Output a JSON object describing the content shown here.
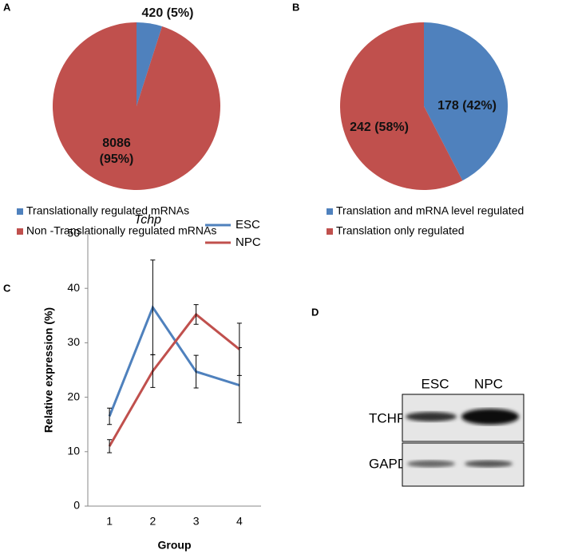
{
  "chart_data": [
    {
      "type": "pie",
      "panel": "A",
      "categories": [
        "Translationally regulated mRNAs",
        "Non -Translationally regulated mRNAs"
      ],
      "values": [
        420,
        8086
      ],
      "value_labels": [
        "420 (5%)",
        "8086 (95%)"
      ],
      "colors": [
        "#4f81bd",
        "#c0504d"
      ]
    },
    {
      "type": "pie",
      "panel": "B",
      "categories": [
        "Translation and mRNA level regulated",
        "Translation only regulated"
      ],
      "values": [
        178,
        242
      ],
      "value_labels": [
        "178 (42%)",
        "242 (58%)"
      ],
      "colors": [
        "#4f81bd",
        "#c0504d"
      ]
    },
    {
      "type": "line",
      "panel": "C",
      "title": "Tchp",
      "x_label": "Group",
      "y_label": "Relative expression  (%)",
      "categories": [
        "1",
        "2",
        "3",
        "4"
      ],
      "series": [
        {
          "name": "ESC",
          "color": "#4f81bd",
          "values": [
            16.5,
            36.5,
            24.7,
            22.2
          ],
          "errors": [
            1.5,
            8.7,
            3.0,
            6.9
          ]
        },
        {
          "name": "NPC",
          "color": "#c0504d",
          "values": [
            11,
            24.8,
            35.2,
            28.8
          ],
          "errors": [
            1.2,
            3.0,
            1.8,
            4.8
          ]
        }
      ],
      "ylim": [
        0,
        50
      ],
      "yticks": [
        0,
        10,
        20,
        30,
        40,
        50
      ],
      "legend": "upper right"
    }
  ],
  "blot": {
    "panel": "D",
    "lanes": [
      "ESC",
      "NPC"
    ],
    "rows": [
      "TCHP",
      "GAPDH"
    ]
  }
}
